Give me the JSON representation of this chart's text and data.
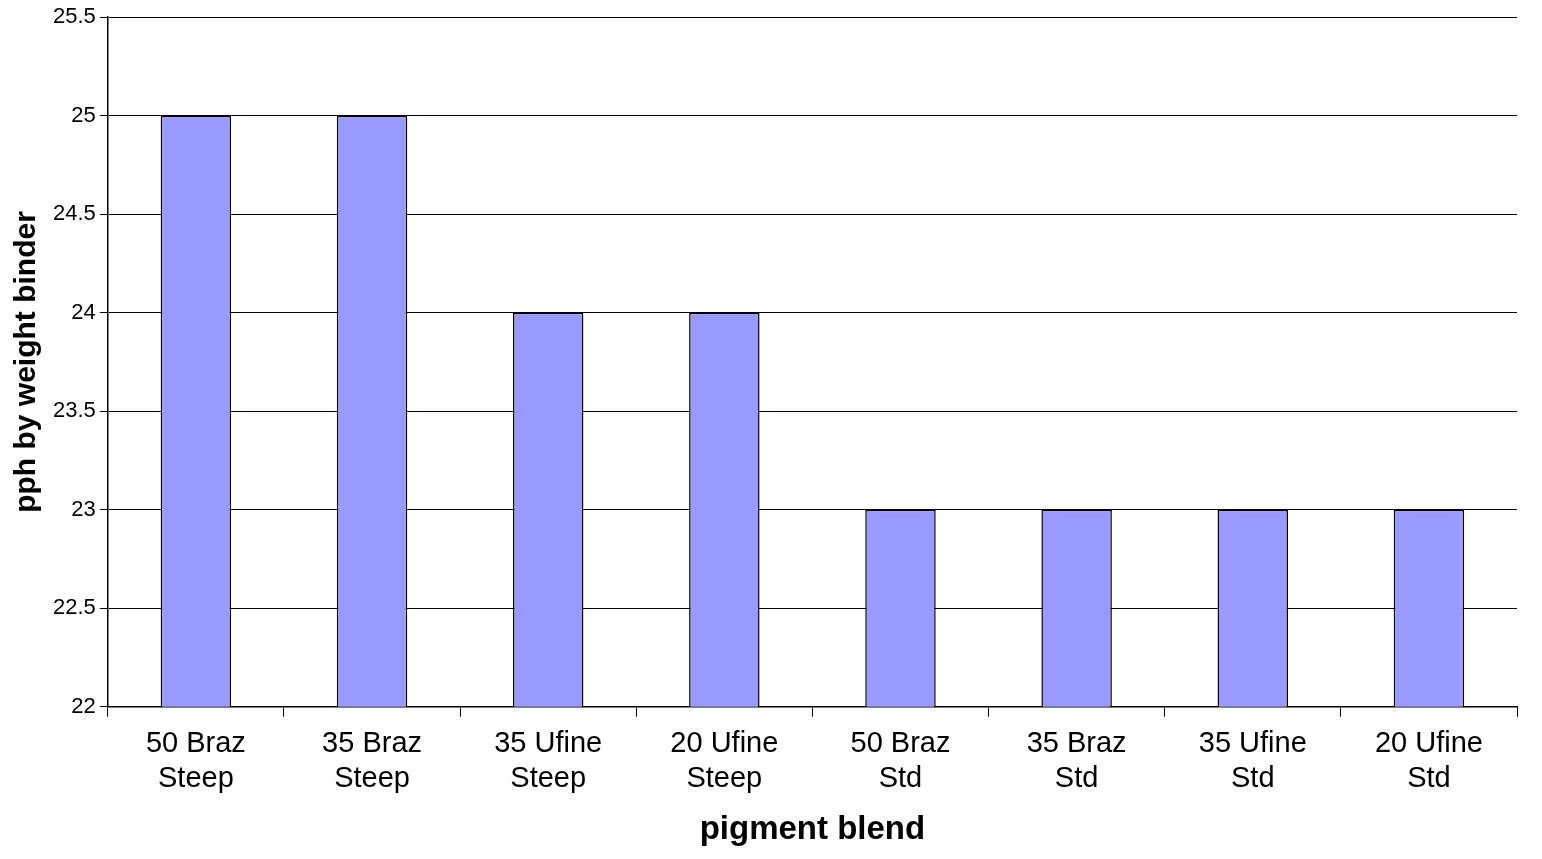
{
  "chart_data": {
    "type": "bar",
    "xlabel": "pigment blend",
    "ylabel": "pph by weight binder",
    "categories": [
      "50 Braz Steep",
      "35 Braz Steep",
      "35 Ufine Steep",
      "20 Ufine Steep",
      "50 Braz Std",
      "35 Braz Std",
      "35 Ufine Std",
      "20 Ufine Std"
    ],
    "values": [
      25,
      25,
      24,
      24,
      23,
      23,
      23,
      23
    ],
    "color": "#9999ff",
    "ylim": [
      22,
      25.5
    ],
    "yticks": [
      22,
      22.5,
      23,
      23.5,
      24,
      24.5,
      25,
      25.5
    ],
    "grid": "y",
    "legend": false
  }
}
